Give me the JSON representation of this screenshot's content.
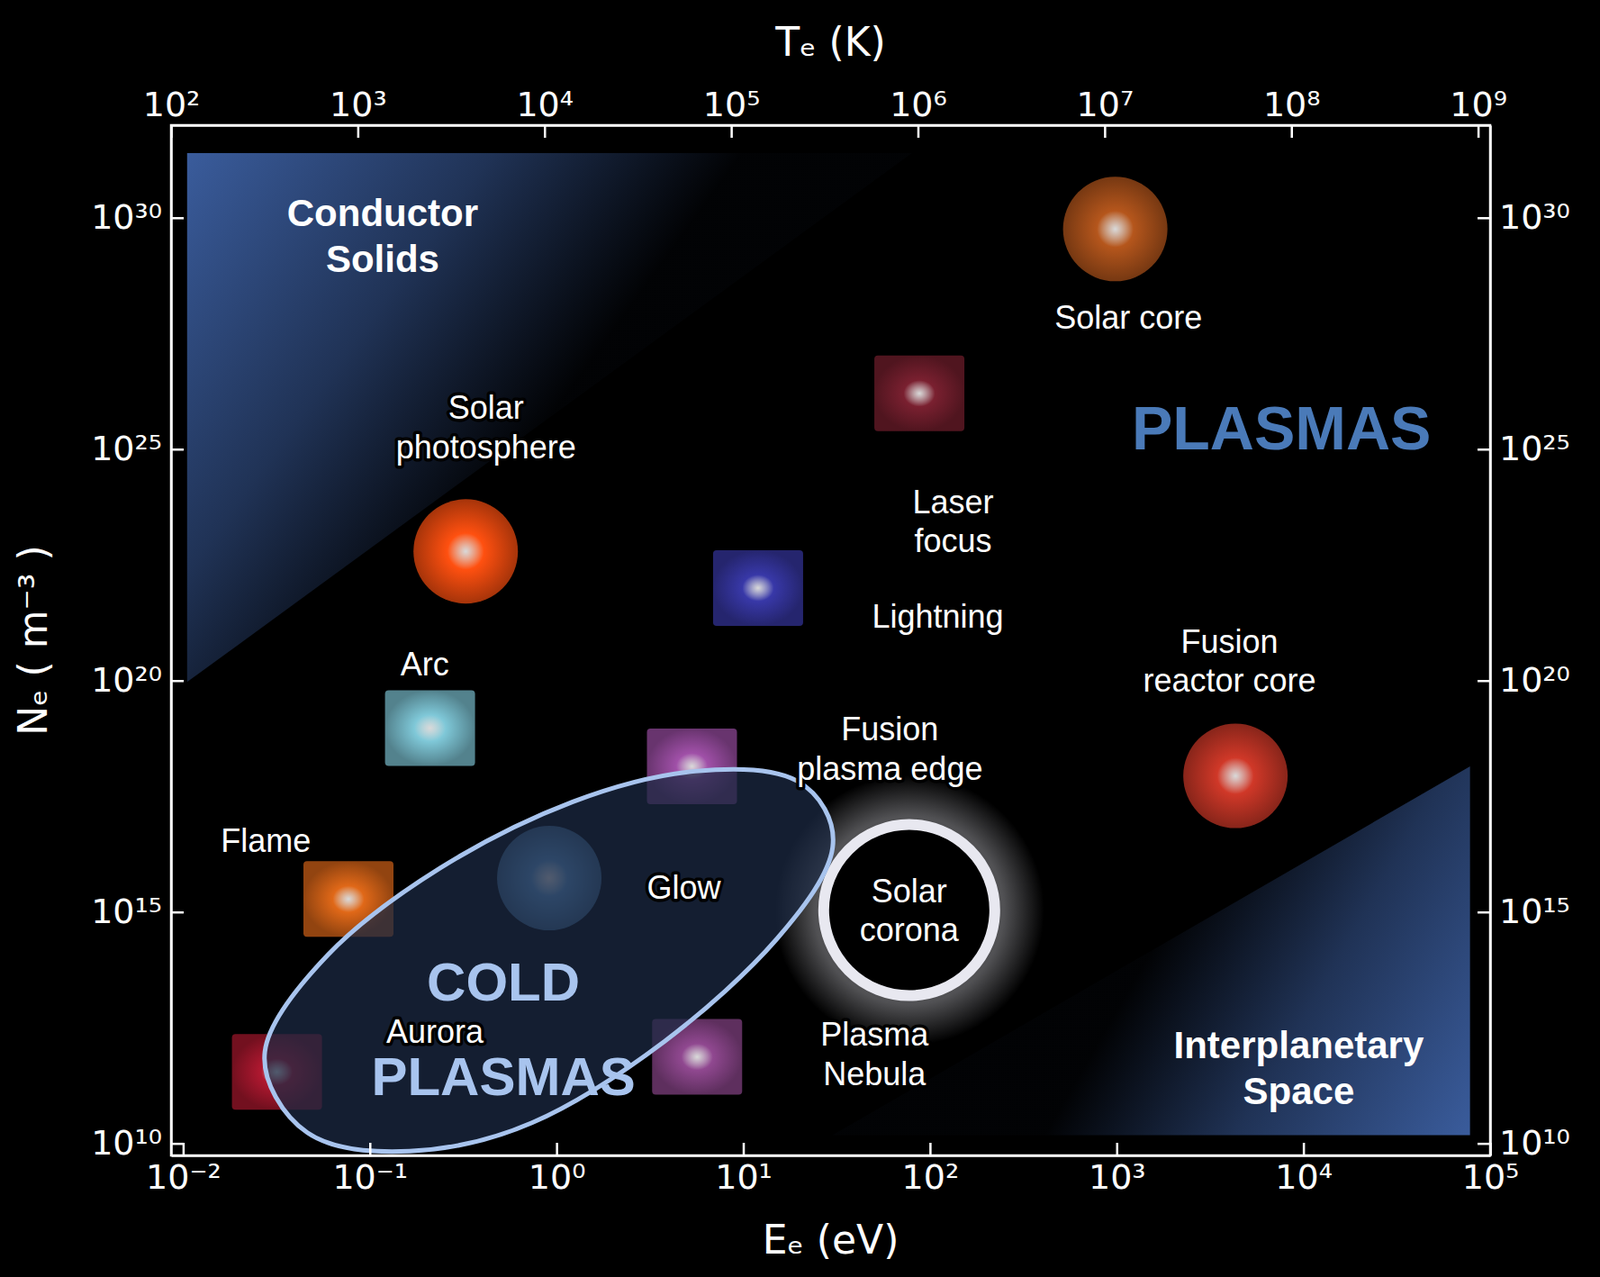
{
  "chart_data": {
    "type": "scatter",
    "log": true,
    "x_label": "Eₑ (eV)",
    "y_label": "Nₑ ( m⁻³ )",
    "x2_label": "Tₑ (K)",
    "xlim": [
      0.008617,
      100000
    ],
    "x2lim": [
      100,
      1160450000
    ],
    "ylim": [
      5500000000.0,
      1e+32
    ],
    "y2lim": [
      5500000000.0,
      1e+32
    ],
    "xticks": [
      {
        "value": 0.01,
        "label": "10⁻²"
      },
      {
        "value": 0.1,
        "label": "10⁻¹"
      },
      {
        "value": 1,
        "label": "10⁰"
      },
      {
        "value": 10,
        "label": "10¹"
      },
      {
        "value": 100,
        "label": "10²"
      },
      {
        "value": 1000,
        "label": "10³"
      },
      {
        "value": 10000,
        "label": "10⁴"
      },
      {
        "value": 100000,
        "label": "10⁵"
      }
    ],
    "x2ticks": [
      {
        "value": 100,
        "label": "10²"
      },
      {
        "value": 1000,
        "label": "10³"
      },
      {
        "value": 10000,
        "label": "10⁴"
      },
      {
        "value": 100000,
        "label": "10⁵"
      },
      {
        "value": 1000000,
        "label": "10⁶"
      },
      {
        "value": 10000000,
        "label": "10⁷"
      },
      {
        "value": 100000000,
        "label": "10⁸"
      },
      {
        "value": 1000000000,
        "label": "10⁹"
      }
    ],
    "yticks": [
      {
        "value": 10000000000.0,
        "label": "10¹⁰"
      },
      {
        "value": 1000000000000000.0,
        "label": "10¹⁵"
      },
      {
        "value": 1e+20,
        "label": "10²⁰"
      },
      {
        "value": 1e+25,
        "label": "10²⁵"
      },
      {
        "value": 1e+30,
        "label": "10³⁰"
      }
    ],
    "y2ticks": [
      {
        "value": 10000000000.0,
        "label": "10¹⁰"
      },
      {
        "value": 1000000000000000.0,
        "label": "10¹⁵"
      },
      {
        "value": 1e+20,
        "label": "10²⁰"
      },
      {
        "value": 1e+25,
        "label": "10²⁵"
      },
      {
        "value": 1e+30,
        "label": "10³⁰"
      }
    ],
    "regions": [
      {
        "label": [
          "Conductor",
          "Solids"
        ],
        "type": "area",
        "color": "#3a5c9c",
        "points": [
          [
            0.0105,
            2.5e+31
          ],
          [
            80,
            2.5e+31
          ],
          [
            0.0105,
            9.3e+19
          ]
        ],
        "label_x": 0.117,
        "label_y": 4.2e+29
      },
      {
        "label": [
          "Interplanetary",
          "Space"
        ],
        "type": "area",
        "color": "#3a5c9c",
        "points": [
          [
            78000,
            15000000000.0
          ],
          [
            30,
            15000000000.0
          ],
          [
            78000,
            1.4e+18
          ]
        ],
        "label_x": 9440,
        "label_y": 430000000000.0
      },
      {
        "label": [
          "COLD",
          "PLASMAS"
        ],
        "type": "outline",
        "color": "#a8c4ee",
        "points": [
          [
            0.0274,
            960000000000.0
          ],
          [
            0.0463,
            17000000000.0
          ],
          [
            0.163,
            6800000000.0
          ],
          [
            0.738,
            28000000000.0
          ],
          [
            3.78,
            1600000000000.0
          ],
          [
            15.1,
            260000000000000.0
          ],
          [
            30.1,
            2.5e+16
          ],
          [
            19.4,
            6.8e+17
          ],
          [
            5.52,
            1.1e+18
          ],
          [
            1.22,
            2.4e+17
          ],
          [
            0.238,
            8900000000000000.0
          ],
          [
            0.0598,
            120000000000000.0
          ]
        ],
        "label_x": 0.519,
        "label_y": 3100000000000.0
      }
    ],
    "points": [
      {
        "label": [
          "Solar core"
        ],
        "x": 982,
        "y": 5.7e+29,
        "label_x": 1156,
        "label_y": 7.2e+27,
        "color": "#b5561c",
        "marker": "circle"
      },
      {
        "label": [
          "Solar",
          "photosphere"
        ],
        "x": 0.326,
        "y": 6.2e+22,
        "label_x": 0.419,
        "label_y": 3e+25,
        "color": "#ff5010",
        "marker": "circle"
      },
      {
        "label": [
          "Laser",
          "focus"
        ],
        "x": 87.7,
        "y": 1.6e+26,
        "label_x": 133,
        "label_y": 2.8e+23,
        "color": "#7a2030",
        "marker": "square"
      },
      {
        "label": [
          "Lightning"
        ],
        "x": 12.0,
        "y": 1e+22,
        "label_x": 110,
        "label_y": 2.5e+21,
        "color": "#3838a8",
        "marker": "square"
      },
      {
        "label": [
          "Arc"
        ],
        "x": 0.21,
        "y": 9.4e+18,
        "label_x": 0.197,
        "label_y": 2.3e+20,
        "color": "#7fc8d8",
        "marker": "square"
      },
      {
        "label": [
          "Fusion",
          "plasma edge"
        ],
        "x": 5.31,
        "y": 1.4e+18,
        "label_x": 61.0,
        "label_y": 3.4e+18,
        "color": "#a050a8",
        "marker": "square"
      },
      {
        "label": [
          "Fusion",
          "reactor core"
        ],
        "x": 4325,
        "y": 8.7e+17,
        "label_x": 4018,
        "label_y": 2.7e+20,
        "color": "#d03828",
        "marker": "circle"
      },
      {
        "label": [
          "Flame"
        ],
        "x": 0.0768,
        "y": 1900000000000000.0,
        "label_x": 0.0277,
        "label_y": 3.5e+16,
        "color": "#e06818",
        "marker": "square"
      },
      {
        "label": [
          "Glow"
        ],
        "x": 0.914,
        "y": 5400000000000000.0,
        "label_x": 4.81,
        "label_y": 3400000000000000.0,
        "color": "#5a90c0",
        "marker": "circle"
      },
      {
        "label": [
          "Solar",
          "corona"
        ],
        "x": 77.4,
        "y": 1100000000000000.0,
        "label_x": 77.4,
        "label_y": 1100000000000000.0,
        "color": "#e8e8f0",
        "marker": "ring"
      },
      {
        "label": [
          "Aurora"
        ],
        "x": 0.0318,
        "y": 350000000000.0,
        "label_x": 0.223,
        "label_y": 2700000000000.0,
        "color": "#b01830",
        "marker": "square"
      },
      {
        "label": [
          "Plasma",
          "Nebula"
        ],
        "x": 5.66,
        "y": 740000000000.0,
        "label_x": 50.5,
        "label_y": 870000000000.0,
        "color": "#904890",
        "marker": "square"
      }
    ],
    "annotations": [
      {
        "text": "PLASMAS",
        "x": 7620,
        "y": 3e+25,
        "color": "#4a7ab8"
      }
    ]
  }
}
